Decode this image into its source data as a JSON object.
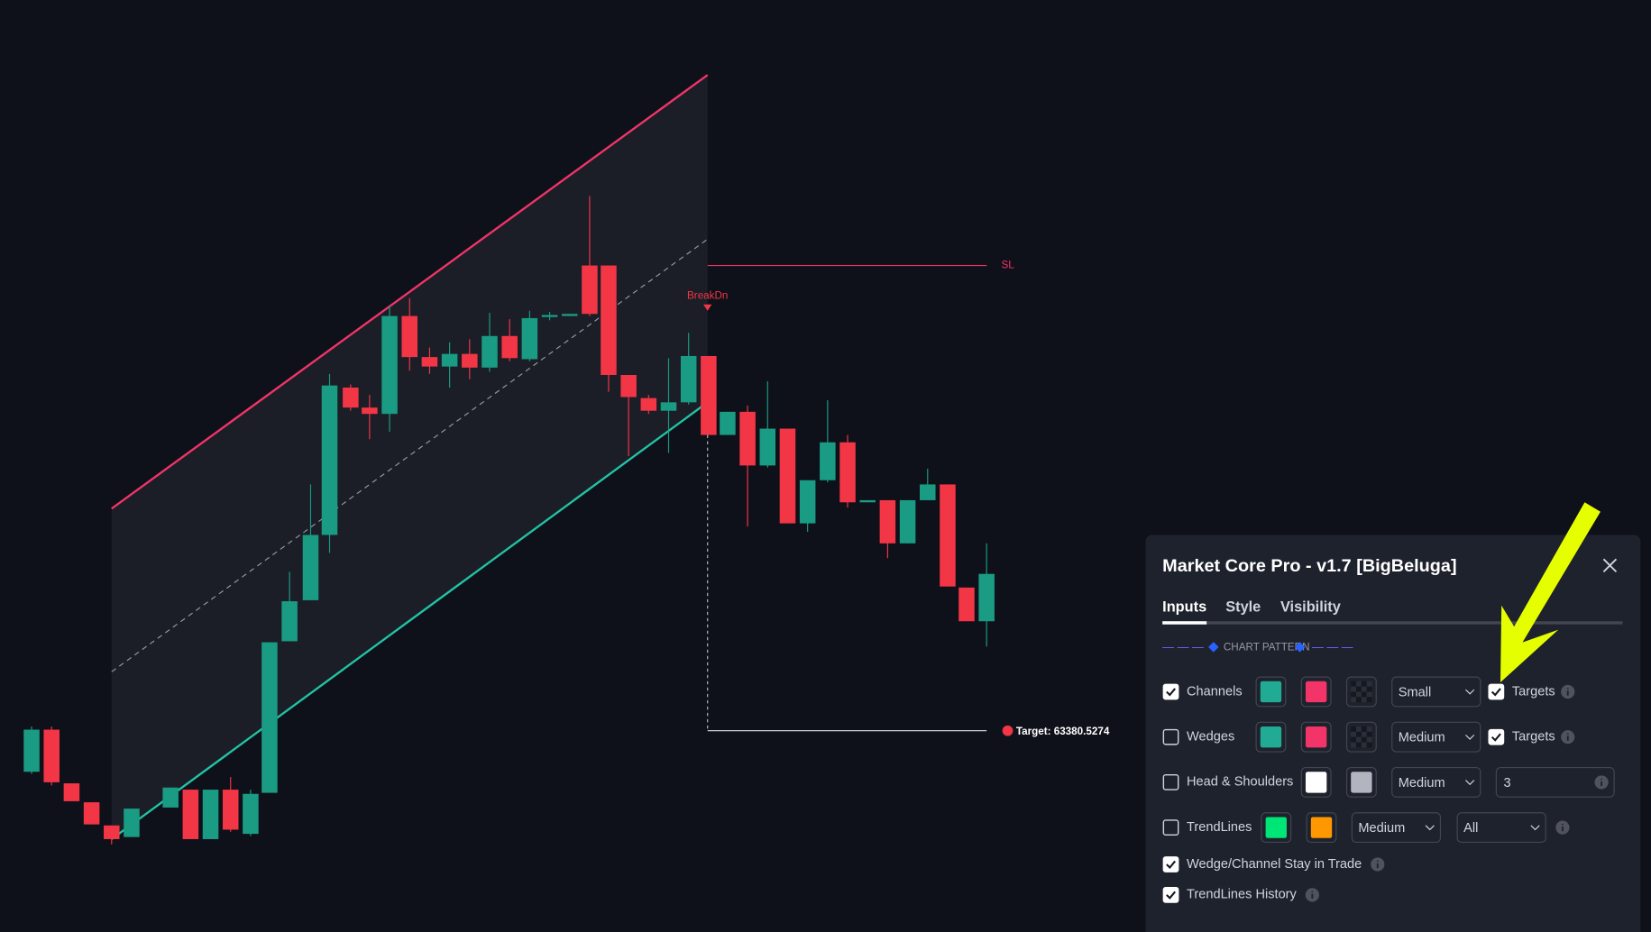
{
  "chart": {
    "sl_label": "SL",
    "break_label": "BreakDn",
    "target_label": "Target: 63380.5274"
  },
  "panel": {
    "title": "Market Core Pro - v1.7 [BigBeluga]",
    "tabs": [
      "Inputs",
      "Style",
      "Visibility"
    ],
    "active_tab": 0,
    "section": "CHART PATTERN",
    "rows": [
      {
        "label": "Channels",
        "checked": true,
        "swatches": [
          "#22ab94",
          "#f23468"
        ],
        "checker": true,
        "selects": [
          "Small"
        ],
        "targets": {
          "label": "Targets",
          "checked": true
        }
      },
      {
        "label": "Wedges",
        "checked": false,
        "swatches": [
          "#22ab94",
          "#f23468"
        ],
        "checker": true,
        "selects": [
          "Medium"
        ],
        "targets": {
          "label": "Targets",
          "checked": true
        }
      },
      {
        "label": "Head & Shoulders",
        "checked": false,
        "swatches": [
          "#ffffff",
          "#b2b5be"
        ],
        "selects": [
          "Medium"
        ],
        "input": "3"
      },
      {
        "label": "TrendLines",
        "checked": false,
        "swatches": [
          "#00e676",
          "#ff9800"
        ],
        "selects": [
          "Medium",
          "All"
        ]
      },
      {
        "label": "Wedge/Channel Stay in Trade",
        "checked": true
      },
      {
        "label": "TrendLines History",
        "checked": true
      }
    ]
  }
}
